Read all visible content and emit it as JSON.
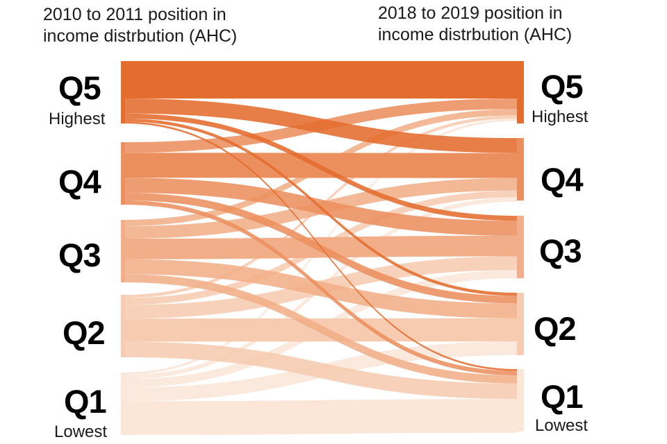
{
  "headers": {
    "left": [
      "2010 to 2011 position in",
      "income distrbution (AHC)"
    ],
    "right": [
      "2018 to 2019 position in",
      "income distrbution (AHC)"
    ]
  },
  "left_labels": [
    {
      "code": "Q5",
      "sub": "Highest"
    },
    {
      "code": "Q4",
      "sub": ""
    },
    {
      "code": "Q3",
      "sub": ""
    },
    {
      "code": "Q2",
      "sub": ""
    },
    {
      "code": "Q1",
      "sub": "Lowest"
    }
  ],
  "right_labels": [
    {
      "code": "Q5",
      "sub": "Highest"
    },
    {
      "code": "Q4",
      "sub": ""
    },
    {
      "code": "Q3",
      "sub": ""
    },
    {
      "code": "Q2",
      "sub": ""
    },
    {
      "code": "Q1",
      "sub": "Lowest"
    }
  ],
  "colors": {
    "Q5": "#e46c2e",
    "Q4": "#ec8f5e",
    "Q3": "#f1ae88",
    "Q2": "#f6cbaf",
    "Q1": "#fbe6d8"
  },
  "flows": [
    {
      "from": "Q5",
      "to": "Q5",
      "share": 0.6
    },
    {
      "from": "Q5",
      "to": "Q4",
      "share": 0.24
    },
    {
      "from": "Q5",
      "to": "Q3",
      "share": 0.08
    },
    {
      "from": "Q5",
      "to": "Q2",
      "share": 0.05
    },
    {
      "from": "Q5",
      "to": "Q1",
      "share": 0.03
    },
    {
      "from": "Q4",
      "to": "Q5",
      "share": 0.17
    },
    {
      "from": "Q4",
      "to": "Q4",
      "share": 0.4
    },
    {
      "from": "Q4",
      "to": "Q3",
      "share": 0.24
    },
    {
      "from": "Q4",
      "to": "Q2",
      "share": 0.12
    },
    {
      "from": "Q4",
      "to": "Q1",
      "share": 0.07
    },
    {
      "from": "Q3",
      "to": "Q5",
      "share": 0.1
    },
    {
      "from": "Q3",
      "to": "Q4",
      "share": 0.2
    },
    {
      "from": "Q3",
      "to": "Q3",
      "share": 0.33
    },
    {
      "from": "Q3",
      "to": "Q2",
      "share": 0.24
    },
    {
      "from": "Q3",
      "to": "Q1",
      "share": 0.13
    },
    {
      "from": "Q2",
      "to": "Q5",
      "share": 0.05
    },
    {
      "from": "Q2",
      "to": "Q4",
      "share": 0.11
    },
    {
      "from": "Q2",
      "to": "Q3",
      "share": 0.22
    },
    {
      "from": "Q2",
      "to": "Q2",
      "share": 0.37
    },
    {
      "from": "Q2",
      "to": "Q1",
      "share": 0.25
    },
    {
      "from": "Q1",
      "to": "Q5",
      "share": 0.04
    },
    {
      "from": "Q1",
      "to": "Q4",
      "share": 0.07
    },
    {
      "from": "Q1",
      "to": "Q3",
      "share": 0.13
    },
    {
      "from": "Q1",
      "to": "Q2",
      "share": 0.22
    },
    {
      "from": "Q1",
      "to": "Q1",
      "share": 0.54
    }
  ]
}
